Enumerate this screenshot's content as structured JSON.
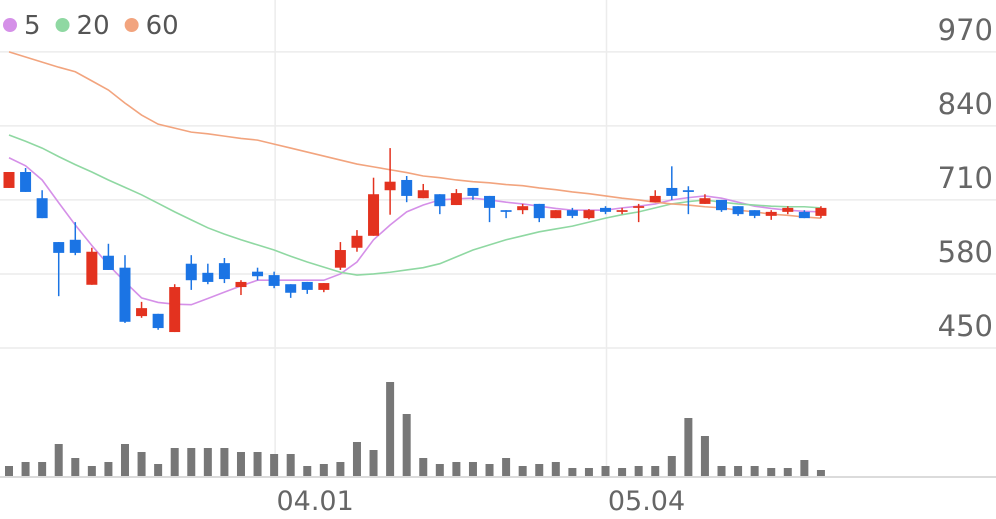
{
  "chart_data": {
    "type": "candlestick",
    "categories": [
      null,
      null,
      null,
      null,
      null,
      null,
      null,
      null,
      null,
      null,
      null,
      null,
      null,
      null,
      null,
      null,
      "04.01",
      null,
      null,
      null,
      null,
      null,
      null,
      null,
      null,
      null,
      null,
      null,
      null,
      null,
      null,
      null,
      null,
      null,
      null,
      null,
      "05.04",
      null,
      null,
      null,
      null,
      null,
      null,
      null,
      null,
      null,
      null,
      null,
      null,
      null
    ],
    "open": [
      731,
      759,
      713,
      636,
      640,
      561,
      612,
      591,
      506,
      510,
      478,
      598,
      582,
      599,
      557,
      584,
      578,
      562,
      566,
      552,
      591,
      626,
      647,
      727,
      745,
      713,
      720,
      701,
      731,
      717,
      692,
      692,
      703,
      678,
      692,
      678,
      696,
      689,
      696,
      706,
      731,
      727,
      703,
      710,
      699,
      692,
      682,
      689,
      689,
      682
    ],
    "high": [
      759,
      766,
      727,
      636,
      671,
      626,
      633,
      613,
      531,
      510,
      562,
      613,
      598,
      608,
      569,
      591,
      584,
      562,
      566,
      564,
      636,
      657,
      749,
      801,
      752,
      738,
      720,
      729,
      731,
      717,
      692,
      703,
      703,
      692,
      696,
      694,
      699,
      696,
      703,
      727,
      769,
      734,
      720,
      710,
      699,
      692,
      692,
      699,
      692,
      699
    ],
    "low": [
      731,
      724,
      678,
      541,
      613,
      561,
      587,
      494,
      503,
      482,
      478,
      552,
      562,
      564,
      543,
      569,
      555,
      538,
      545,
      548,
      587,
      619,
      647,
      684,
      706,
      713,
      685,
      701,
      710,
      671,
      678,
      685,
      671,
      678,
      678,
      676,
      685,
      685,
      671,
      706,
      710,
      685,
      703,
      689,
      682,
      678,
      675,
      685,
      678,
      678
    ],
    "close": [
      759,
      724,
      678,
      617,
      617,
      619,
      587,
      496,
      520,
      485,
      557,
      569,
      566,
      571,
      566,
      576,
      559,
      547,
      552,
      564,
      622,
      647,
      720,
      742,
      717,
      727,
      699,
      722,
      717,
      696,
      689,
      699,
      678,
      692,
      682,
      692,
      689,
      692,
      699,
      717,
      717,
      724,
      713,
      692,
      685,
      682,
      689,
      696,
      678,
      696
    ],
    "up_color": "#e3321f",
    "down_color": "#1b74e4",
    "moving_averages": [
      {
        "name": "5",
        "color": "#d590e8",
        "values": [
          784,
          770,
          745,
          705,
          666,
          630,
          596,
          566,
          538,
          530,
          527,
          526,
          537,
          548,
          559,
          569,
          569,
          569,
          569,
          569,
          580,
          601,
          640,
          666,
          689,
          701,
          710,
          712,
          713,
          710,
          706,
          703,
          699,
          695,
          692,
          692,
          692,
          696,
          699,
          703,
          710,
          714,
          717,
          713,
          706,
          699,
          695,
          692,
          690,
          689
        ]
      },
      {
        "name": "20",
        "color": "#8fd8a2",
        "values": [
          824,
          813,
          801,
          786,
          772,
          759,
          745,
          732,
          719,
          704,
          689,
          675,
          661,
          650,
          640,
          631,
          622,
          611,
          601,
          592,
          583,
          578,
          580,
          583,
          587,
          591,
          598,
          610,
          622,
          631,
          640,
          647,
          654,
          659,
          664,
          671,
          678,
          684,
          689,
          696,
          703,
          707,
          710,
          706,
          703,
          701,
          699,
          698,
          698,
          696
        ]
      },
      {
        "name": "60",
        "color": "#f2a47e",
        "values": [
          970,
          961,
          952,
          943,
          935,
          919,
          903,
          880,
          859,
          843,
          836,
          829,
          826,
          822,
          818,
          815,
          808,
          801,
          794,
          787,
          780,
          773,
          768,
          763,
          758,
          752,
          749,
          745,
          742,
          740,
          737,
          735,
          731,
          728,
          724,
          721,
          717,
          713,
          710,
          706,
          703,
          701,
          698,
          696,
          692,
          689,
          685,
          683,
          680,
          678
        ]
      }
    ],
    "volume": {
      "color": "#777777",
      "ylim": [
        0,
        100
      ],
      "values": [
        10,
        14,
        14,
        32,
        18,
        10,
        14,
        32,
        24,
        12,
        28,
        28,
        28,
        28,
        24,
        24,
        22,
        22,
        10,
        12,
        14,
        34,
        26,
        94,
        62,
        18,
        12,
        14,
        14,
        12,
        18,
        10,
        12,
        14,
        8,
        8,
        10,
        8,
        10,
        10,
        20,
        58,
        40,
        10,
        10,
        10,
        8,
        8,
        16,
        6
      ]
    },
    "ylim": [
      450,
      1061
    ],
    "yticks": [
      450,
      580,
      710,
      840,
      970
    ],
    "grid": true
  }
}
